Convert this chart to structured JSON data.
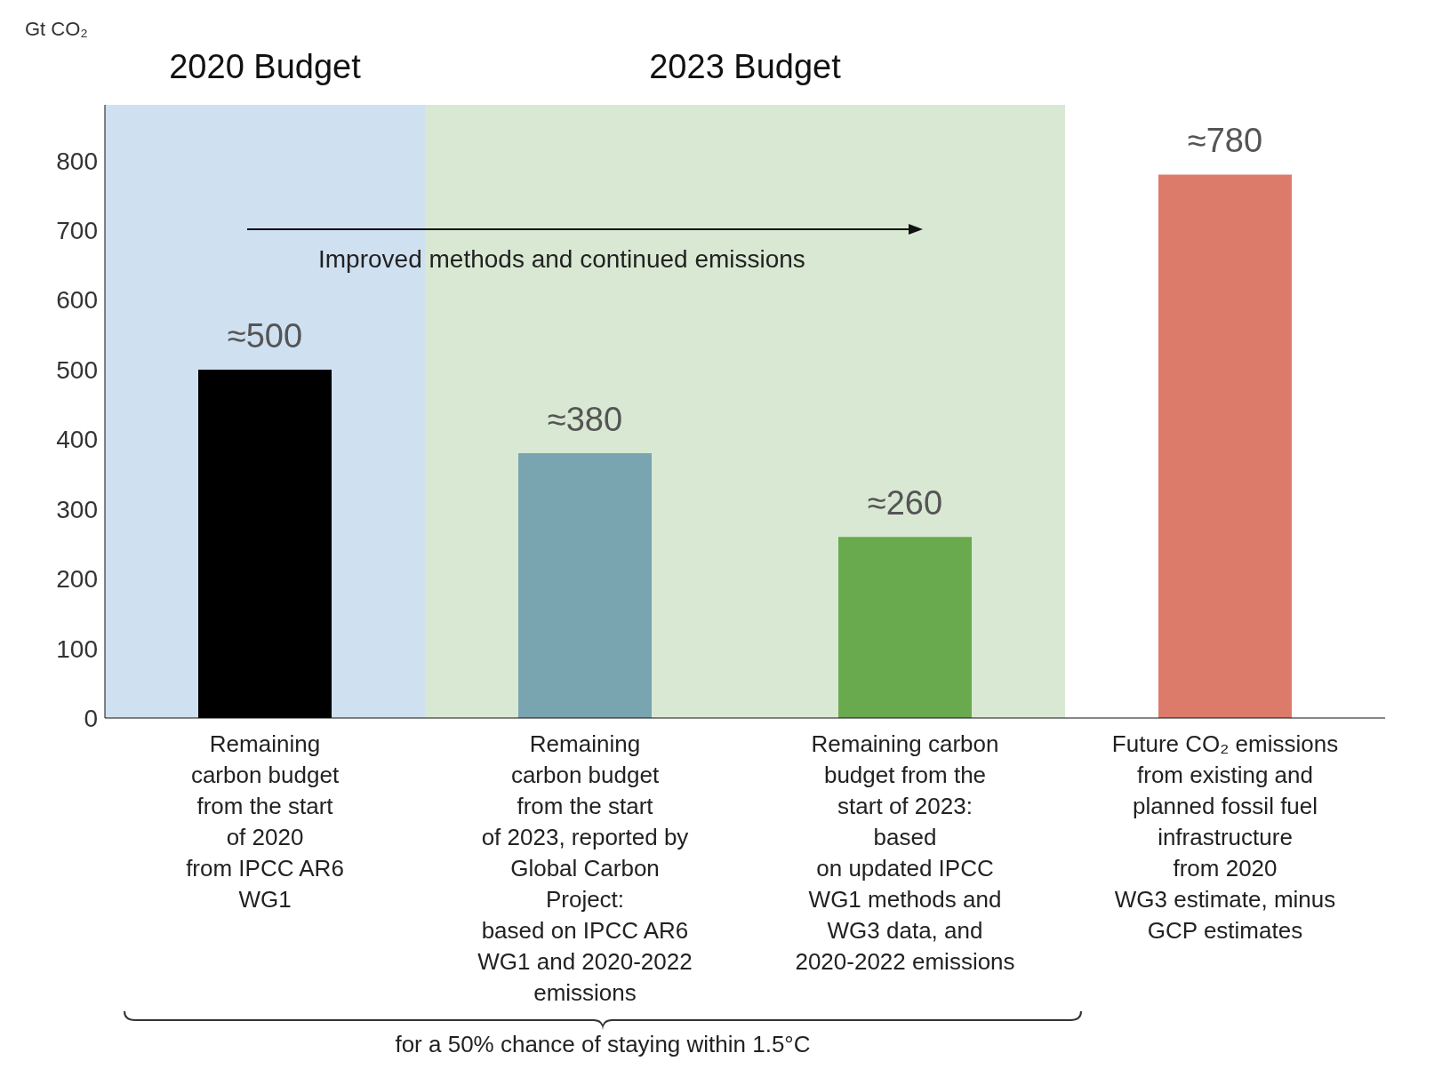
{
  "chart_data": {
    "type": "bar",
    "ylabel": "Gt CO₂",
    "categories": [
      "Remaining\ncarbon budget\nfrom the start\nof 2020\nfrom IPCC AR6\nWG1",
      "Remaining\ncarbon budget\nfrom the start\nof 2023, reported by\nGlobal Carbon\nProject:\nbased on IPCC AR6\nWG1 and 2020-2022\nemissions",
      "Remaining carbon\nbudget from the\nstart of 2023:\nbased\non updated IPCC\nWG1 methods and\nWG3 data, and\n2020-2022 emissions",
      "Future CO₂ emissions\nfrom existing and\nplanned fossil fuel\ninfrastructure\nfrom 2020\nWG3 estimate, minus\nGCP estimates"
    ],
    "values": [
      500,
      380,
      260,
      780
    ],
    "colors": [
      "#000000",
      "#78a5b0",
      "#6aaa4e",
      "#dd7b6b"
    ],
    "value_labels": [
      "≈500",
      "≈380",
      "≈260",
      "≈780"
    ],
    "ylim": [
      0,
      880
    ],
    "yticks": [
      0,
      100,
      200,
      300,
      400,
      500,
      600,
      700,
      800
    ],
    "bands": [
      {
        "axis": "x",
        "from": "Remaining\ncarbon budget\nfrom the start\nof 2020\nfrom IPCC AR6\nWG1",
        "to": "Remaining\ncarbon budget\nfrom the start\nof 2020\nfrom IPCC AR6\nWG1",
        "label": "2020 Budget",
        "color": "#cfe0f1"
      },
      {
        "axis": "x",
        "from": "Remaining\ncarbon budget\nfrom the start\nof 2023, reported by\nGlobal Carbon\nProject:\nbased on IPCC AR6\nWG1 and 2020-2022\nemissions",
        "to": "Remaining carbon\nbudget from the\nstart of 2023:\nbased\non updated IPCC\nWG1 methods and\nWG3 data, and\n2020-2022 emissions",
        "label": "2023 Budget",
        "color": "#d9e8d3"
      }
    ],
    "annotations": [
      "Improved methods and continued emissions",
      "for a 50% chance of staying within 1.5°C"
    ]
  }
}
